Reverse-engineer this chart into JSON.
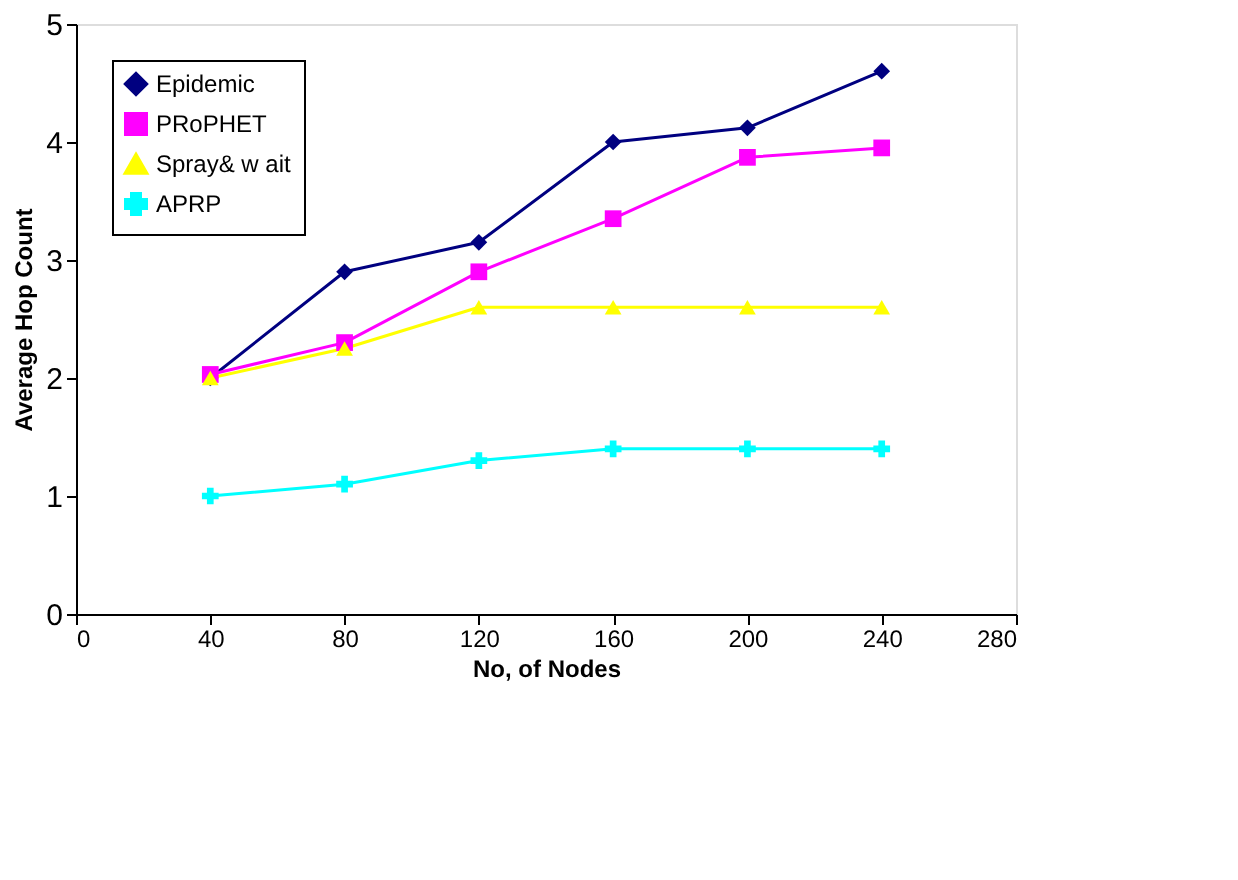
{
  "chart_data": {
    "type": "line",
    "xlabel": "No, of Nodes",
    "ylabel": "Average Hop Count",
    "x": [
      40,
      80,
      120,
      160,
      200,
      240
    ],
    "xlim": [
      0,
      280
    ],
    "xticks": [
      0,
      40,
      80,
      120,
      160,
      200,
      240,
      280
    ],
    "ylim": [
      0,
      5
    ],
    "yticks": [
      0,
      1,
      2,
      3,
      4,
      5
    ],
    "grid": false,
    "legend": "top left",
    "series": [
      {
        "name": "Epidemic",
        "color": "#000080",
        "marker": "diamond",
        "values": [
          2.0,
          2.9,
          3.15,
          4.0,
          4.12,
          4.6
        ]
      },
      {
        "name": "PRoPHET",
        "color": "#ff00ff",
        "marker": "square",
        "values": [
          2.03,
          2.3,
          2.9,
          3.35,
          3.87,
          3.95
        ]
      },
      {
        "name": "Spray& w ait",
        "color": "#ffff00",
        "marker": "triangle",
        "values": [
          2.0,
          2.25,
          2.6,
          2.6,
          2.6,
          2.6
        ]
      },
      {
        "name": "APRP",
        "color": "#00ffff",
        "marker": "cross",
        "values": [
          1.0,
          1.1,
          1.3,
          1.4,
          1.4,
          1.4
        ]
      }
    ]
  }
}
